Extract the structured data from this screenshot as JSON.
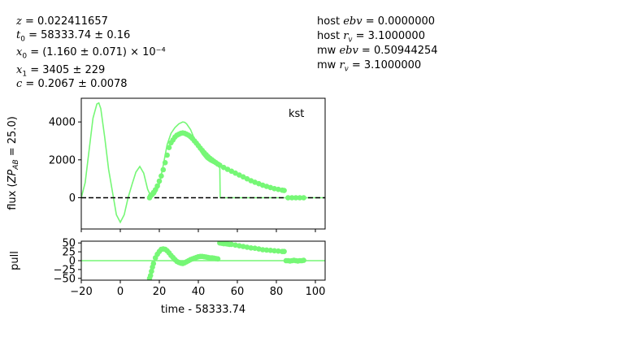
{
  "fit_params_left": [
    {
      "sym": "z",
      "eq": " = 0.022411657"
    },
    {
      "sym": "t0",
      "eq": " = 58333.74 ± 0.16"
    },
    {
      "sym": "x0",
      "eq": " = (1.160 ± 0.071) × 10⁻⁴"
    },
    {
      "sym": "x1",
      "eq": " = 3405 ± 229"
    },
    {
      "sym": "c",
      "eq": " = 0.2067 ± 0.0078"
    }
  ],
  "fit_params_right": [
    {
      "pre": "host ",
      "sym": "ebv",
      "eq": " = 0.0000000"
    },
    {
      "pre": "host ",
      "sym": "rv",
      "eq": " = 3.1000000"
    },
    {
      "pre": "mw ",
      "sym": "ebv",
      "eq": " = 0.50944254"
    },
    {
      "pre": "mw ",
      "sym": "rv",
      "eq": " = 3.1000000"
    }
  ],
  "colors": {
    "model": "#76f776",
    "points": "#76f776",
    "zero": "#000000"
  },
  "chart_data": [
    {
      "type": "line",
      "panel": "flux",
      "band": "kst",
      "ylabel": "flux (ZP_AB = 25.0)",
      "xlim": [
        -20,
        105
      ],
      "ylim": [
        -1650,
        5250
      ],
      "yticks": [
        0,
        2000,
        4000
      ],
      "xticks": [
        -20,
        0,
        20,
        40,
        60,
        80,
        100
      ],
      "zero_line": 0,
      "series": [
        {
          "kind": "model",
          "x": [
            -20,
            -18,
            -16,
            -14,
            -12,
            -11,
            -10,
            -8,
            -6,
            -4,
            -2,
            0,
            2,
            4,
            6,
            8,
            10,
            12,
            14,
            16,
            18,
            20,
            22,
            24,
            26,
            28,
            30,
            32,
            33,
            34,
            36,
            38,
            40,
            42,
            44,
            46,
            48,
            50,
            51,
            51.2,
            60,
            70,
            80,
            85,
            90,
            100,
            105
          ],
          "y": [
            0,
            800,
            2500,
            4200,
            4950,
            5000,
            4700,
            3200,
            1500,
            300,
            -900,
            -1300,
            -900,
            0,
            700,
            1350,
            1650,
            1300,
            450,
            0,
            200,
            700,
            1700,
            2800,
            3400,
            3700,
            3900,
            4000,
            3980,
            3900,
            3600,
            3100,
            2650,
            2300,
            2050,
            1900,
            1800,
            1700,
            1650,
            0,
            0,
            0,
            0,
            0,
            0,
            0,
            0
          ]
        },
        {
          "kind": "data",
          "x": [
            15,
            15.5,
            16,
            17,
            18,
            19,
            20,
            21,
            22,
            23,
            24,
            25,
            26,
            27,
            28,
            29,
            30,
            31,
            32,
            33,
            34,
            35,
            36,
            37,
            38,
            39,
            40,
            41,
            42,
            43,
            44,
            45,
            46,
            47,
            48,
            49,
            50,
            51,
            53,
            55,
            57,
            59,
            61,
            63,
            65,
            67,
            69,
            71,
            73,
            75,
            77,
            79,
            81,
            83,
            84,
            86,
            88,
            90,
            92,
            94
          ],
          "y": [
            0,
            100,
            150,
            280,
            420,
            620,
            880,
            1150,
            1480,
            1850,
            2250,
            2650,
            2900,
            3050,
            3200,
            3300,
            3350,
            3400,
            3420,
            3400,
            3350,
            3300,
            3220,
            3120,
            3000,
            2880,
            2750,
            2620,
            2500,
            2380,
            2270,
            2170,
            2080,
            2000,
            1920,
            1850,
            1780,
            1720,
            1600,
            1500,
            1400,
            1300,
            1200,
            1100,
            1000,
            900,
            820,
            740,
            660,
            600,
            540,
            480,
            440,
            400,
            380,
            0,
            0,
            0,
            0,
            0
          ]
        }
      ]
    },
    {
      "type": "scatter",
      "panel": "pull",
      "ylabel": "pull",
      "xlabel": "time - 58333.74",
      "xlim": [
        -20,
        105
      ],
      "ylim": [
        -55,
        55
      ],
      "yticks": [
        -50,
        -25,
        0,
        25,
        50
      ],
      "xticks": [
        -20,
        0,
        20,
        40,
        60,
        80,
        100
      ],
      "zero_line": 0,
      "series": [
        {
          "kind": "pull",
          "x": [
            15,
            15.5,
            16,
            16.5,
            17,
            18,
            19,
            20,
            21,
            22,
            23,
            24,
            25,
            26,
            27,
            28,
            29,
            30,
            31,
            32,
            33,
            34,
            35,
            36,
            37,
            38,
            39,
            40,
            41,
            42,
            43,
            44,
            45,
            46,
            47,
            48,
            49,
            50,
            51,
            52,
            53,
            54,
            55,
            56,
            57,
            59,
            61,
            63,
            65,
            67,
            69,
            71,
            73,
            75,
            77,
            79,
            81,
            83,
            84,
            85,
            86,
            87,
            88,
            89,
            90,
            91,
            92,
            93,
            94
          ],
          "y": [
            -50,
            -42,
            -30,
            -18,
            -8,
            8,
            18,
            26,
            32,
            33,
            32,
            28,
            22,
            15,
            9,
            3,
            -2,
            -5,
            -7,
            -8,
            -6,
            -3,
            0,
            3,
            5,
            7,
            9,
            11,
            12,
            12,
            11,
            10,
            9,
            8,
            8,
            7,
            6,
            5,
            50,
            49,
            48,
            48,
            47,
            46,
            46,
            44,
            42,
            40,
            38,
            36,
            35,
            33,
            31,
            30,
            29,
            28,
            27,
            26,
            26,
            0,
            0,
            -1,
            0,
            1,
            0,
            -1,
            0,
            0,
            1
          ]
        }
      ]
    }
  ]
}
